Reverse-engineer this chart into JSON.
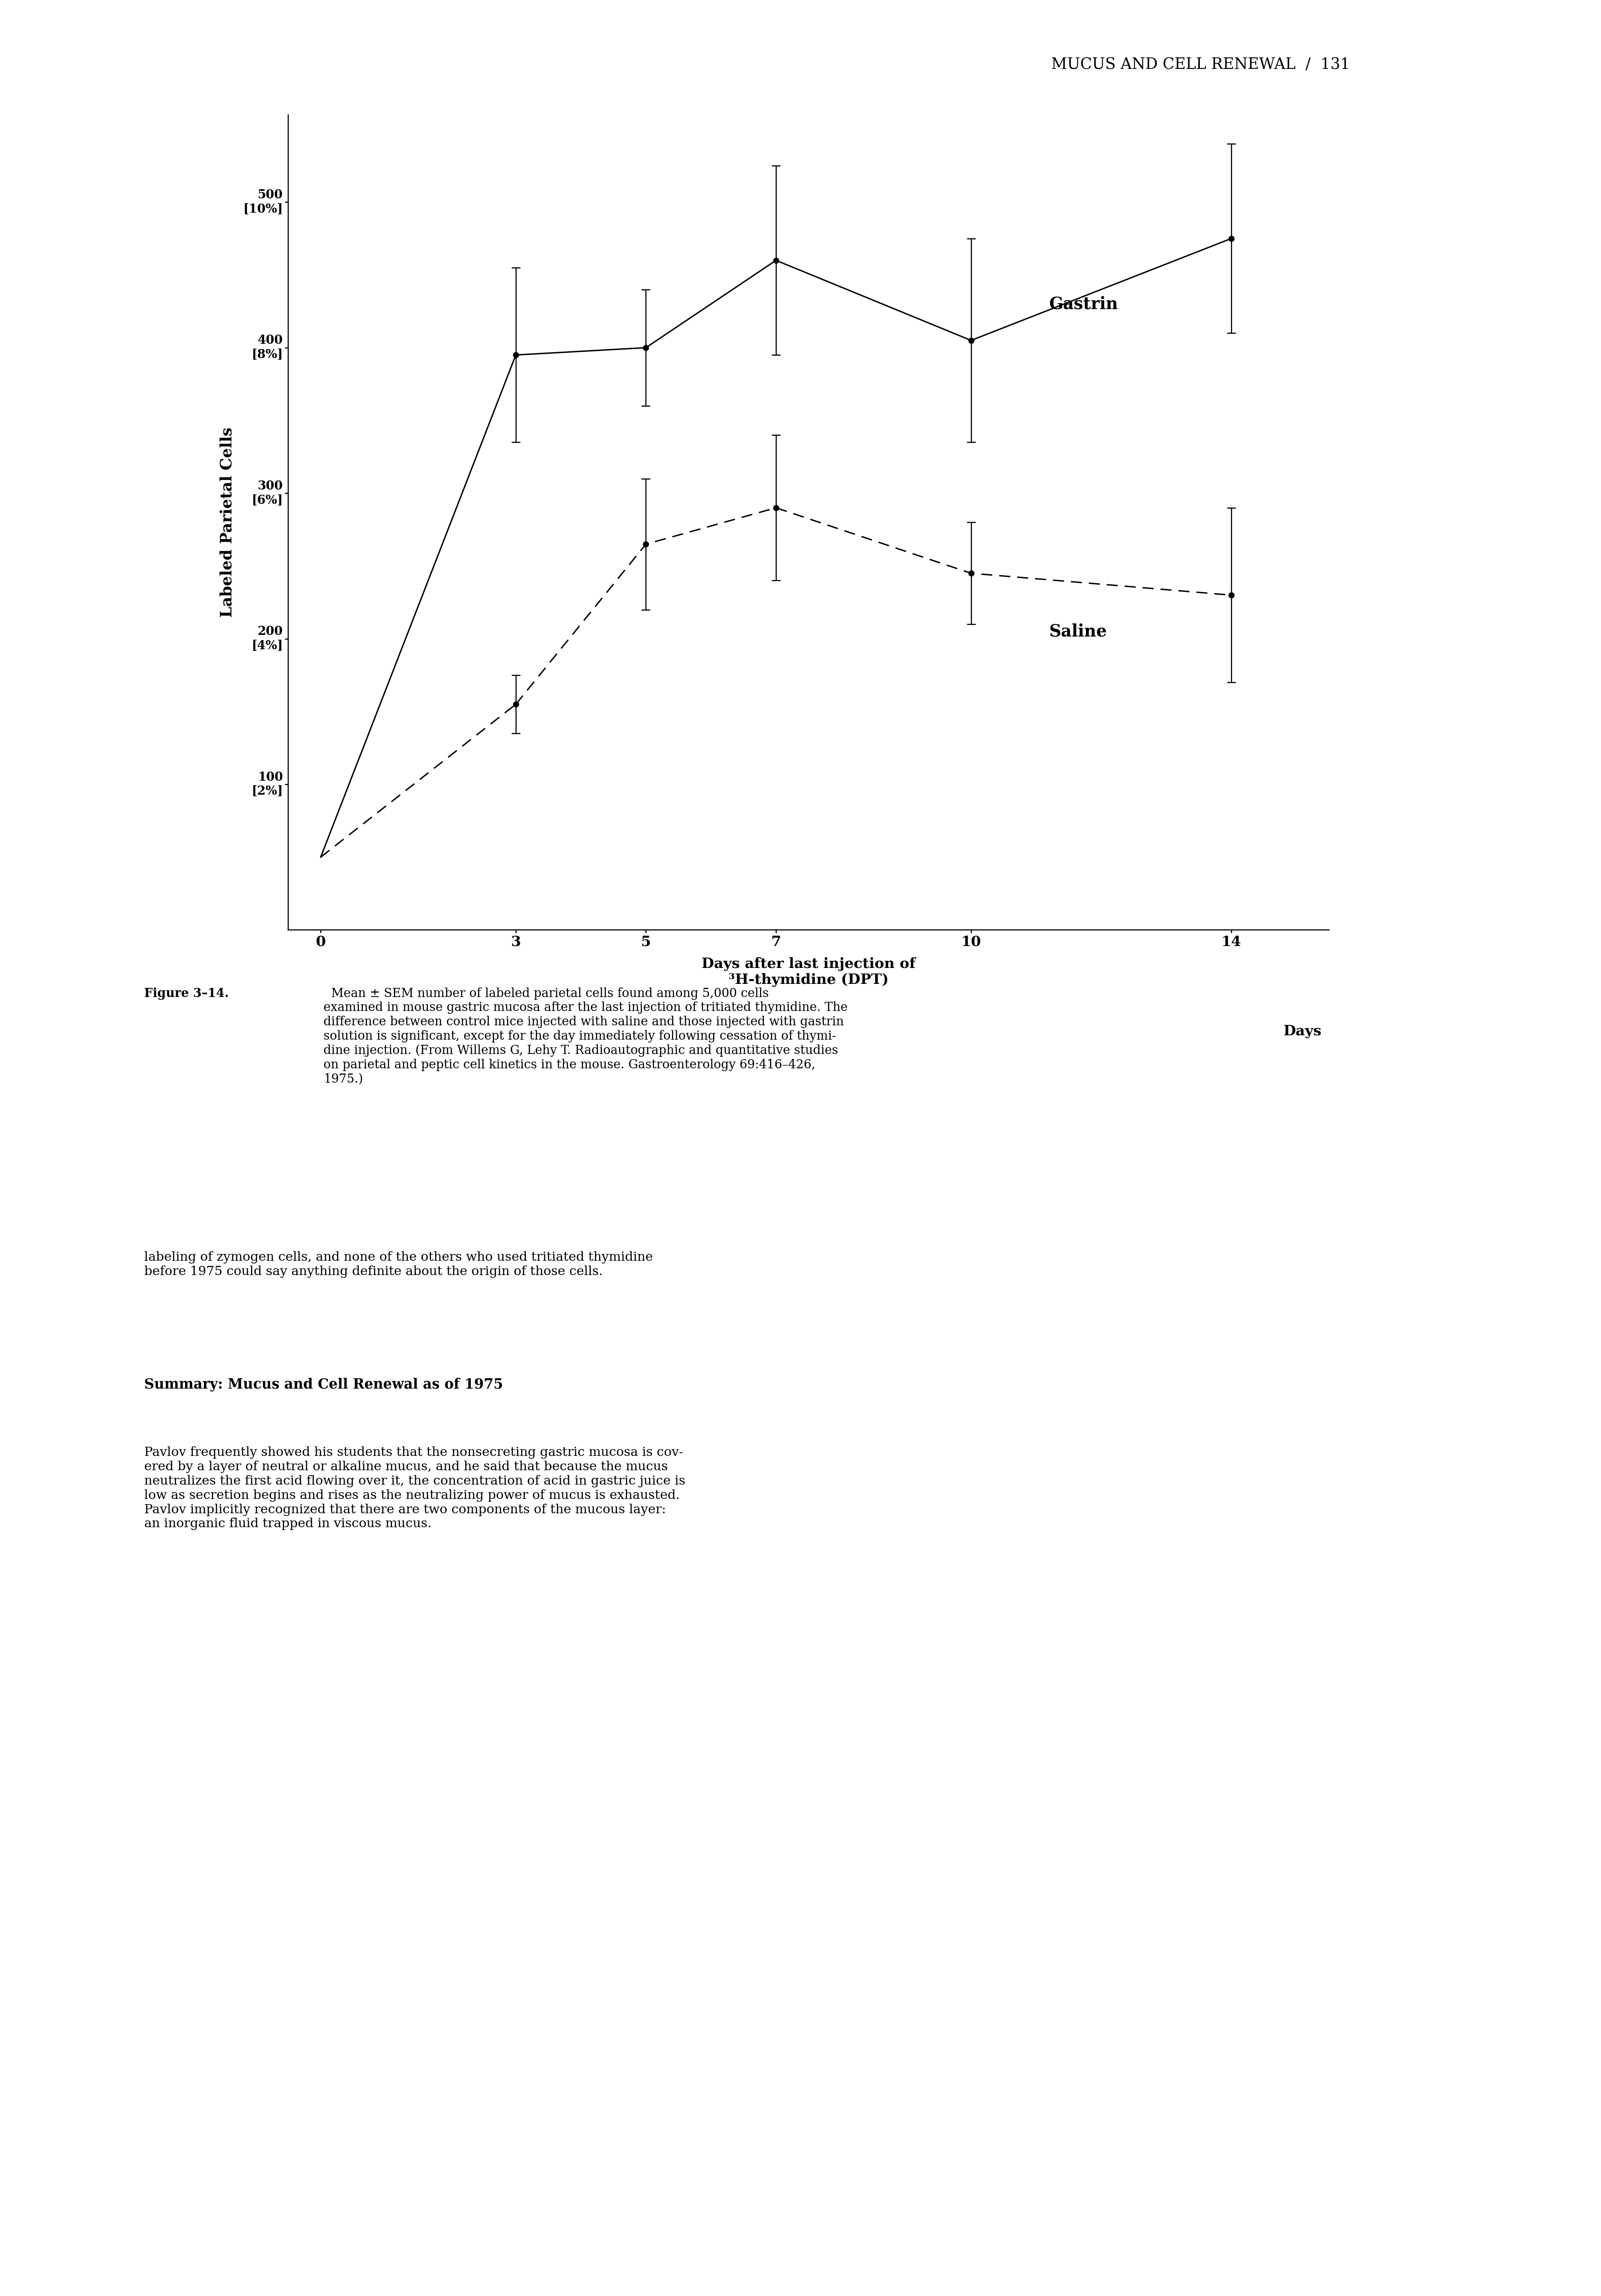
{
  "gastrin_x": [
    3,
    5,
    7,
    10,
    14
  ],
  "gastrin_y": [
    395,
    400,
    460,
    405,
    475
  ],
  "gastrin_yerr": [
    60,
    40,
    65,
    70,
    65
  ],
  "saline_x": [
    3,
    5,
    7,
    10,
    14
  ],
  "saline_y": [
    155,
    265,
    290,
    245,
    230
  ],
  "saline_yerr": [
    20,
    45,
    50,
    35,
    60
  ],
  "gastrin_label": "Gastrin",
  "saline_label": "Saline",
  "xlabel": "Days after last injection of\n³H-thymidine (DPT)",
  "ylabel": "Labeled Parietal Cells",
  "yticks": [
    100,
    200,
    300,
    400,
    500
  ],
  "xticks": [
    0,
    3,
    5,
    7,
    10,
    14
  ],
  "xtick_labels": [
    "0",
    "3",
    "5",
    "7",
    "10",
    "14"
  ],
  "days_label": "Days",
  "ylim": [
    0,
    560
  ],
  "xlim": [
    -0.5,
    15.5
  ],
  "header": "MUCUS AND CELL RENEWAL  /  131",
  "figure3_bold": "Figure 3–14.",
  "figure3_rest": "  Mean ± SEM number of labeled parietal cells found among 5,000 cells\nexamined in mouse gastric mucosa after the last injection of tritiated thymidine. The\ndifference between control mice injected with saline and those injected with gastrin\nsolution is significant, except for the day immediately following cessation of thymi-\ndine injection. (From Willems G, Lehy T. Radioautographic and quantitative studies\non parietal and peptic cell kinetics in the mouse. Gastroenterology 69:416–426,\n1975.)",
  "body_text_1": "labeling of zymogen cells, and none of the others who used tritiated thymidine\nbefore 1975 could say anything definite about the origin of those cells.",
  "summary_heading": "Summary: Mucus and Cell Renewal as of 1975",
  "body_text_2": "Pavlov frequently showed his students that the nonsecreting gastric mucosa is cov-\nered by a layer of neutral or alkaline mucus, and he said that because the mucus\nneutralizes the first acid flowing over it, the concentration of acid in gastric juice is\nlow as secretion begins and rises as the neutralizing power of mucus is exhausted.\nPavlov implicitly recognized that there are two components of the mucous layer:\nan inorganic fluid trapped in viscous mucus."
}
